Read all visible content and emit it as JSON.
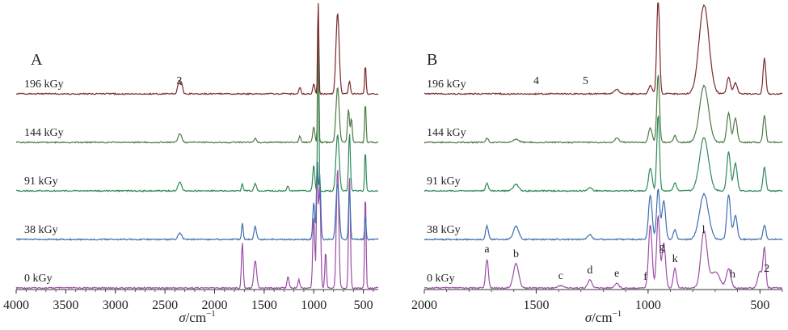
{
  "chart_data": [
    {
      "type": "line",
      "panel_label": "A",
      "xlabel_main": "σ",
      "xlabel_unit": "/cm",
      "xlabel_exp": "−1",
      "xlim": [
        4000,
        350
      ],
      "ticks": [
        "4000",
        "3500",
        "3000",
        "2500",
        "2000",
        "1500",
        "1000",
        "500"
      ],
      "tick_values": [
        4000,
        3500,
        3000,
        2500,
        2000,
        1500,
        1000,
        500
      ],
      "series": [
        {
          "name": "0 kGy",
          "color": "#9b4fa6",
          "peaks": [
            [
              1720,
              56,
              9
            ],
            [
              1590,
              34,
              14
            ],
            [
              1260,
              14,
              10
            ],
            [
              1150,
              10,
              10
            ],
            [
              1000,
              90,
              10
            ],
            [
              965,
              150,
              8
            ],
            [
              940,
              125,
              10
            ],
            [
              880,
              46,
              8
            ],
            [
              760,
              150,
              12
            ],
            [
              640,
              140,
              9
            ],
            [
              480,
              120,
              7
            ]
          ]
        },
        {
          "name": "38 kGy",
          "color": "#3f6fb0",
          "peaks": [
            [
              2350,
              8,
              18
            ],
            [
              1720,
              20,
              8
            ],
            [
              1590,
              16,
              12
            ],
            [
              1000,
              46,
              10
            ],
            [
              965,
              98,
              8
            ],
            [
              940,
              80,
              10
            ],
            [
              760,
              70,
              16
            ],
            [
              640,
              62,
              9
            ],
            [
              480,
              30,
              7
            ]
          ]
        },
        {
          "name": "91 kGy",
          "color": "#2f8a5a",
          "peaks": [
            [
              2350,
              11,
              18
            ],
            [
              1720,
              9,
              8
            ],
            [
              1590,
              9,
              12
            ],
            [
              1260,
              6,
              10
            ],
            [
              1000,
              32,
              10
            ],
            [
              955,
              200,
              6
            ],
            [
              760,
              70,
              16
            ],
            [
              640,
              72,
              9
            ],
            [
              480,
              50,
              7
            ]
          ]
        },
        {
          "name": "144 kGy",
          "color": "#4e7a45",
          "peaks": [
            [
              2350,
              11,
              18
            ],
            [
              1590,
              5,
              12
            ],
            [
              1140,
              8,
              10
            ],
            [
              1000,
              20,
              10
            ],
            [
              955,
              150,
              6
            ],
            [
              760,
              68,
              16
            ],
            [
              650,
              42,
              10
            ],
            [
              620,
              30,
              8
            ],
            [
              480,
              50,
              7
            ]
          ]
        },
        {
          "name": "196 kGy",
          "color": "#7a2a2a",
          "peaks": [
            [
              2360,
              16,
              12
            ],
            [
              2330,
              12,
              10
            ],
            [
              1140,
              8,
              10
            ],
            [
              1000,
              12,
              10
            ],
            [
              955,
              125,
              6
            ],
            [
              760,
              100,
              16
            ],
            [
              640,
              16,
              10
            ],
            [
              480,
              36,
              7
            ]
          ]
        }
      ],
      "annotations": [
        {
          "text": "3",
          "x": 2355,
          "series": "196 kGy"
        }
      ]
    },
    {
      "type": "line",
      "panel_label": "B",
      "xlabel_main": "σ",
      "xlabel_unit": "/cm",
      "xlabel_exp": "−1",
      "xlim": [
        2000,
        400
      ],
      "ticks": [
        "2000",
        "1500",
        "1000",
        "500"
      ],
      "tick_values": [
        2000,
        1500,
        1000,
        500
      ],
      "series": [
        {
          "name": "0 kGy",
          "color": "#9b4fa6",
          "peaks": [
            [
              1720,
              36,
              6
            ],
            [
              1590,
              30,
              12
            ],
            [
              1390,
              3,
              12
            ],
            [
              1260,
              10,
              9
            ],
            [
              1140,
              6,
              9
            ],
            [
              990,
              78,
              8
            ],
            [
              955,
              90,
              7
            ],
            [
              930,
              56,
              8
            ],
            [
              880,
              24,
              7
            ],
            [
              750,
              70,
              14
            ],
            [
              700,
              20,
              20
            ],
            [
              640,
              24,
              10
            ],
            [
              500,
              20,
              10
            ],
            [
              480,
              48,
              6
            ]
          ]
        },
        {
          "name": "38 kGy",
          "color": "#3f6fb0",
          "peaks": [
            [
              1720,
              17,
              6
            ],
            [
              1590,
              16,
              12
            ],
            [
              1260,
              6,
              9
            ],
            [
              990,
              55,
              8
            ],
            [
              955,
              62,
              7
            ],
            [
              930,
              48,
              8
            ],
            [
              880,
              12,
              7
            ],
            [
              750,
              56,
              20
            ],
            [
              640,
              56,
              8
            ],
            [
              610,
              30,
              8
            ],
            [
              480,
              18,
              6
            ]
          ]
        },
        {
          "name": "91 kGy",
          "color": "#2f8a5a",
          "peaks": [
            [
              1720,
              10,
              6
            ],
            [
              1590,
              8,
              12
            ],
            [
              1260,
              4,
              9
            ],
            [
              990,
              28,
              8
            ],
            [
              955,
              95,
              6
            ],
            [
              880,
              10,
              7
            ],
            [
              750,
              66,
              20
            ],
            [
              640,
              48,
              8
            ],
            [
              610,
              34,
              8
            ],
            [
              480,
              30,
              6
            ]
          ]
        },
        {
          "name": "144 kGy",
          "color": "#4e7a45",
          "peaks": [
            [
              1720,
              5,
              6
            ],
            [
              1590,
              4,
              12
            ],
            [
              1140,
              5,
              10
            ],
            [
              990,
              18,
              8
            ],
            [
              955,
              84,
              6
            ],
            [
              880,
              8,
              7
            ],
            [
              750,
              70,
              20
            ],
            [
              640,
              36,
              8
            ],
            [
              610,
              30,
              8
            ],
            [
              480,
              34,
              6
            ]
          ]
        },
        {
          "name": "196 kGy",
          "color": "#7a2a2a",
          "peaks": [
            [
              1140,
              6,
              10
            ],
            [
              990,
              10,
              8
            ],
            [
              955,
              125,
              6
            ],
            [
              750,
              110,
              22
            ],
            [
              640,
              20,
              8
            ],
            [
              610,
              14,
              8
            ],
            [
              480,
              44,
              6
            ]
          ]
        }
      ],
      "annotations": [
        {
          "text": "a",
          "x": 1720,
          "series": "0 kGy"
        },
        {
          "text": "b",
          "x": 1590,
          "series": "0 kGy"
        },
        {
          "text": "c",
          "x": 1390,
          "series": "0 kGy"
        },
        {
          "text": "d",
          "x": 1260,
          "series": "0 kGy"
        },
        {
          "text": "e",
          "x": 1140,
          "series": "0 kGy"
        },
        {
          "text": "f",
          "x": 1012,
          "series": "0 kGy"
        },
        {
          "text": "g",
          "x": 938,
          "series": "0 kGy"
        },
        {
          "text": "k",
          "x": 880,
          "series": "0 kGy"
        },
        {
          "text": "l",
          "x": 752,
          "series": "0 kGy"
        },
        {
          "text": "h",
          "x": 622,
          "series": "0 kGy"
        },
        {
          "text": "2",
          "x": 470,
          "series": "0 kGy"
        },
        {
          "text": "4",
          "x": 1500,
          "series": "196 kGy"
        },
        {
          "text": "5",
          "x": 1280,
          "series": "196 kGy"
        }
      ]
    }
  ]
}
